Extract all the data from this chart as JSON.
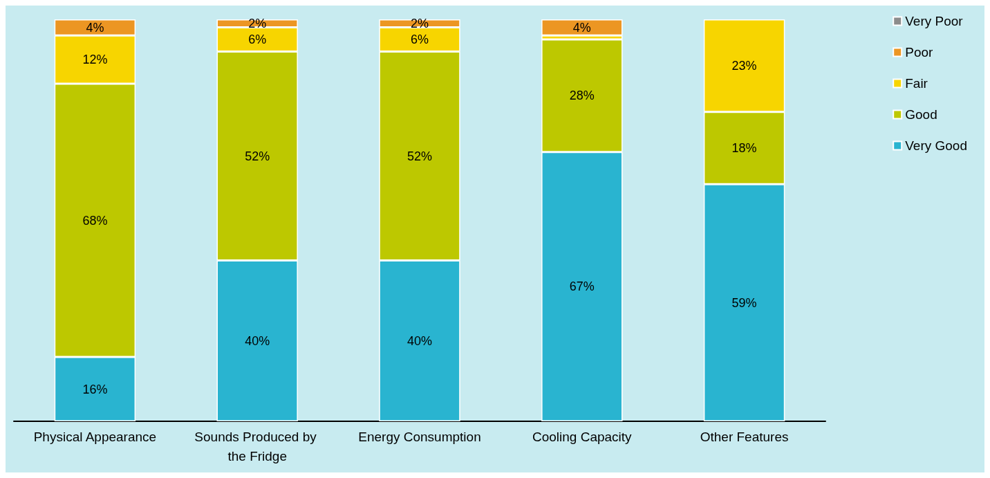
{
  "chart_data": {
    "type": "bar",
    "stacked": true,
    "categories": [
      "Physical Appearance",
      "Sounds Produced by the Fridge",
      "Energy Consumption",
      "Cooling Capacity",
      "Other Features"
    ],
    "series": [
      {
        "name": "Very Good",
        "color": "#29b4d0",
        "values": [
          16,
          40,
          40,
          67,
          59
        ],
        "value_labels": [
          "16%",
          "40%",
          "40%",
          "67%",
          "59%"
        ]
      },
      {
        "name": "Good",
        "color": "#bdc800",
        "values": [
          68,
          52,
          52,
          28,
          18
        ],
        "value_labels": [
          "68%",
          "52%",
          "52%",
          "28%",
          "18%"
        ]
      },
      {
        "name": "Fair",
        "color": "#f7d500",
        "values": [
          12,
          6,
          6,
          1,
          23
        ],
        "value_labels": [
          "12%",
          "6%",
          "6%",
          null,
          "23%"
        ]
      },
      {
        "name": "Poor",
        "color": "#ec9623",
        "values": [
          4,
          2,
          2,
          4,
          null
        ],
        "value_labels": [
          "4%",
          "2%",
          "2%",
          "4%",
          null
        ]
      },
      {
        "name": "Very Poor",
        "color": "#8c8c8c",
        "values": [
          null,
          null,
          null,
          null,
          null
        ]
      }
    ],
    "legend": "top right"
  }
}
